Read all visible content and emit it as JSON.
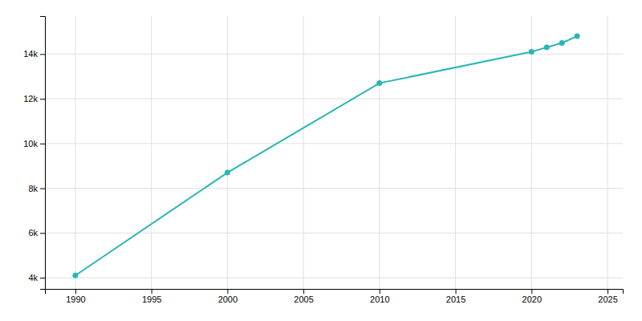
{
  "chart_data": {
    "type": "line",
    "x": [
      1990,
      2000,
      2010,
      2020,
      2021,
      2022,
      2023
    ],
    "values": [
      4100,
      8700,
      12700,
      14100,
      14300,
      14500,
      14800
    ],
    "color": "#2ab5b5",
    "marker": "circle",
    "xlim": [
      1988,
      2026
    ],
    "ylim": [
      3500,
      15700
    ],
    "xticks": [
      1990,
      1995,
      2000,
      2005,
      2010,
      2015,
      2020,
      2025
    ],
    "yticks": [
      {
        "value": 4000,
        "label": "4k"
      },
      {
        "value": 6000,
        "label": "6k"
      },
      {
        "value": 8000,
        "label": "8k"
      },
      {
        "value": 10000,
        "label": "10k"
      },
      {
        "value": 12000,
        "label": "12k"
      },
      {
        "value": 14000,
        "label": "14k"
      }
    ],
    "grid": true
  }
}
